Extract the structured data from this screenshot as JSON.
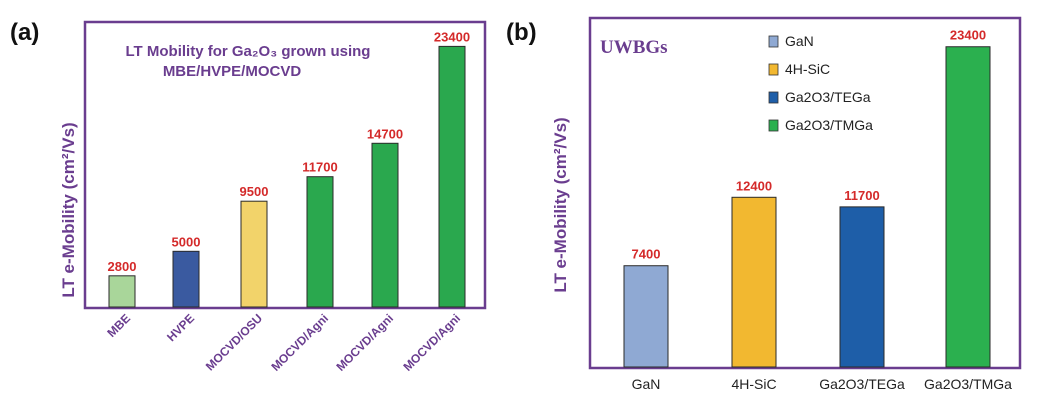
{
  "colors": {
    "frame": "#6a3d8f",
    "label_text": "#6a3d8f",
    "value_text": "#d42a2a",
    "light_green": "#a9d69a",
    "blue": "#3a5aa0",
    "yellow": "#f2d36a",
    "green": "#2aa84e",
    "light_blue": "#8fa9d3",
    "gold": "#f2b830",
    "dark_blue": "#1e5ea8",
    "tmga_green": "#2bb04f"
  },
  "panel_a": {
    "panel_label": "(a)",
    "ylabel": "LT e-Mobility (cm²/Vs)",
    "title_line1": "LT Mobility for Ga₂O₃ grown using",
    "title_line2": "MBE/HVPE/MOCVD"
  },
  "panel_b": {
    "panel_label": "(b)",
    "ylabel": "LT e-Mobility (cm²/Vs)",
    "inset_label": "UWBGs",
    "legend": [
      "GaN",
      "4H-SiC",
      "Ga2O3/TEGa",
      "Ga2O3/TMGa"
    ]
  },
  "chart_data": [
    {
      "type": "bar",
      "title": "LT Mobility for Ga₂O₃ grown using MBE/HVPE/MOCVD",
      "ylabel": "LT e-Mobility (cm²/Vs)",
      "xlabel": "",
      "categories": [
        "MBE",
        "HVPE",
        "MOCVD/OSU",
        "MOCVD/Agni",
        "MOCVD/Agni",
        "MOCVD/Agni"
      ],
      "values": [
        2800,
        5000,
        9500,
        11700,
        14700,
        23400
      ],
      "value_labels": [
        "2800",
        "5000",
        "9500",
        "11700",
        "14700",
        "23400"
      ],
      "bar_colors": [
        "#a9d69a",
        "#3a5aa0",
        "#f2d36a",
        "#2aa84e",
        "#2aa84e",
        "#2aa84e"
      ],
      "ylim": [
        0,
        25500
      ]
    },
    {
      "type": "bar",
      "title": "",
      "ylabel": "LT e-Mobility (cm²/Vs)",
      "xlabel": "",
      "categories": [
        "GaN",
        "4H-SiC",
        "Ga2O3/TEGa",
        "Ga2O3/TMGa"
      ],
      "values": [
        7400,
        12400,
        11700,
        23400
      ],
      "value_labels": [
        "7400",
        "12400",
        "11700",
        "23400"
      ],
      "bar_colors": [
        "#8fa9d3",
        "#f2b830",
        "#1e5ea8",
        "#2bb04f"
      ],
      "ylim": [
        0,
        25500
      ],
      "legend_placement": "top-center"
    }
  ]
}
